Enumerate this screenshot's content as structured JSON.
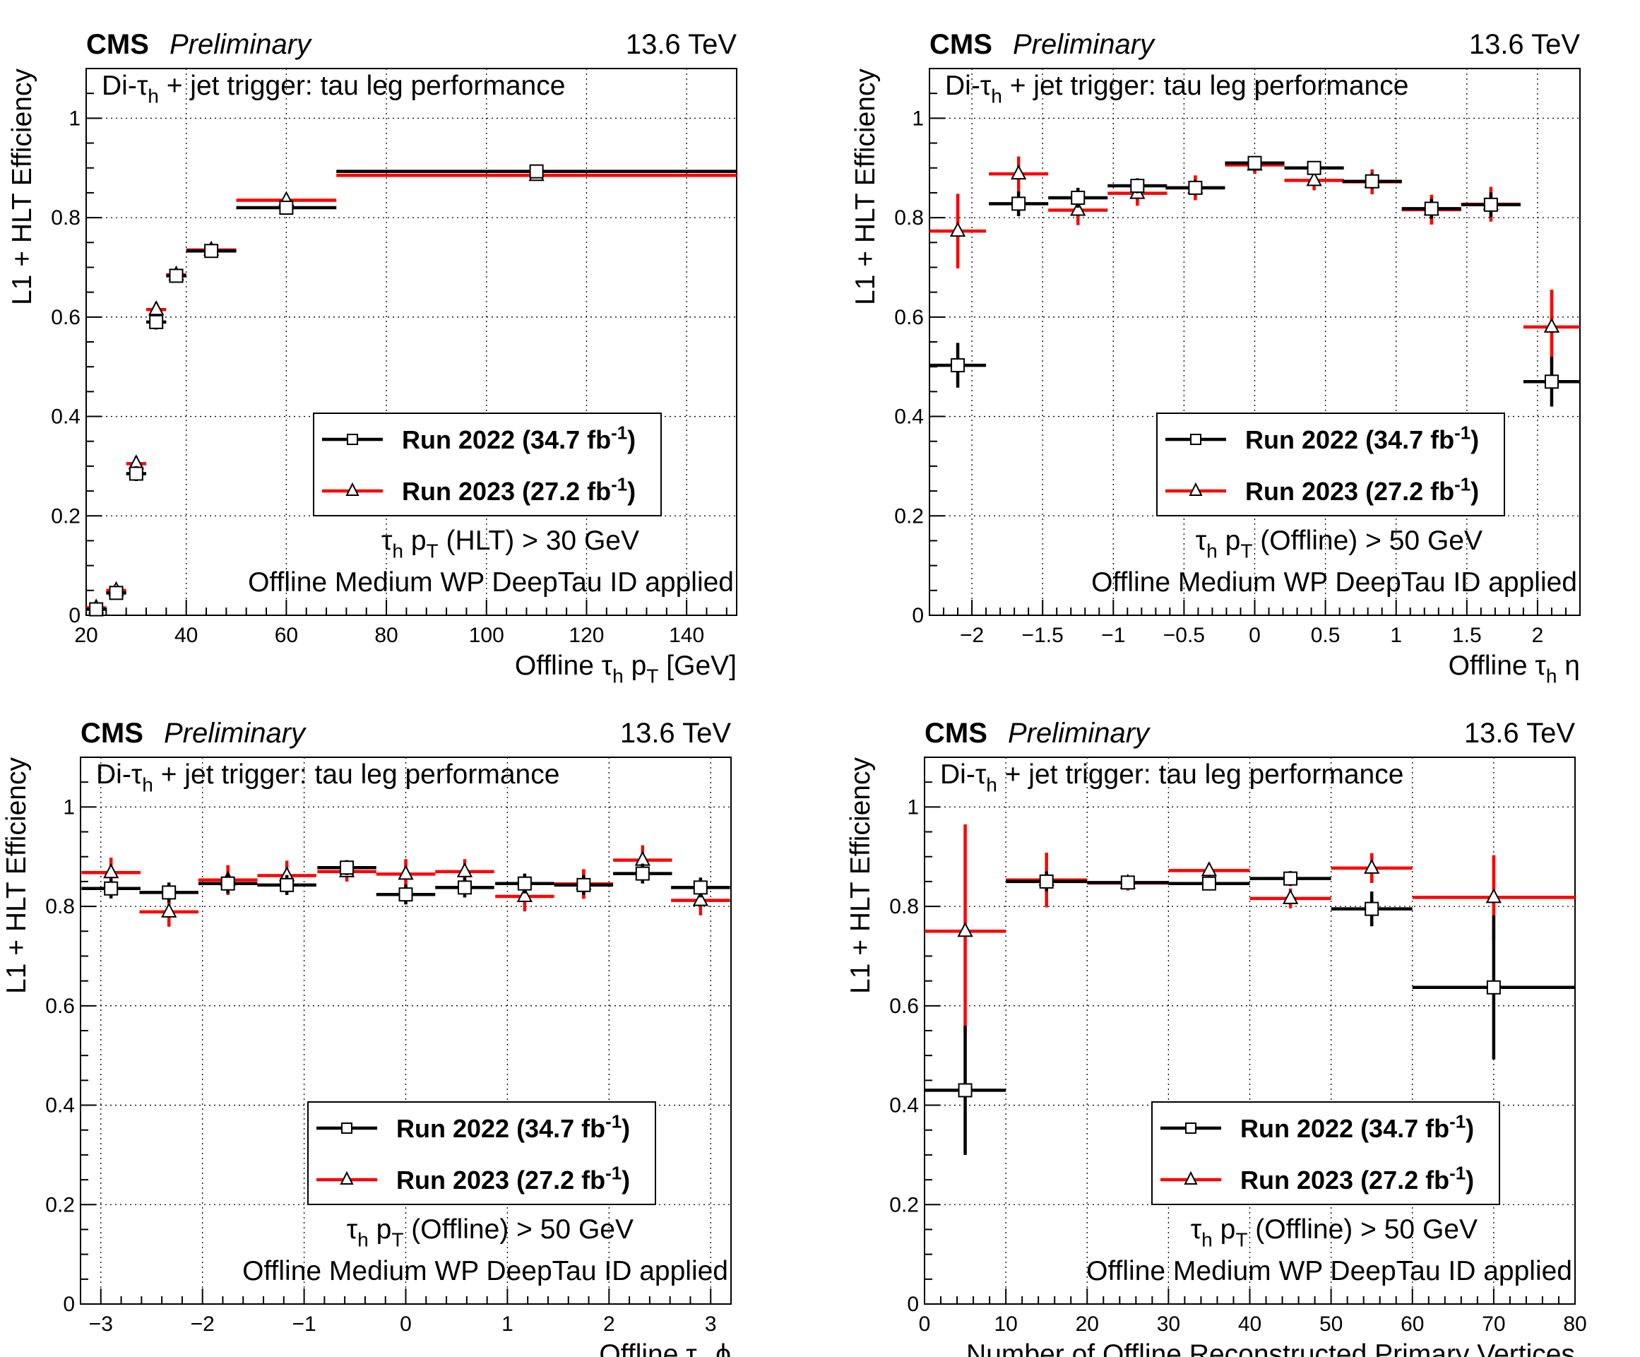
{
  "colors": {
    "run2022": "#000000",
    "run2023": "#ff0000"
  },
  "chart_data": [
    {
      "type": "scatter",
      "cms_label": "CMS",
      "preliminary": "Preliminary",
      "energy": "13.6 TeV",
      "title": "Di-τh + jet trigger: tau leg performance",
      "title_main": "Di-τ",
      "title_sub": "h",
      "title_rest": " + jet trigger: tau leg performance",
      "ylabel": "L1 + HLT Efficiency",
      "xlabel_main": "Offline τ",
      "xlabel_sub": "h",
      "xlabel_rest": " p",
      "xlabel_sub2": "T",
      "xlabel_tail": " [GeV]",
      "xlim": [
        20,
        150
      ],
      "ylim": [
        0,
        1.1
      ],
      "xticks": [
        20,
        40,
        60,
        80,
        100,
        120,
        140
      ],
      "xtick_labels": [
        "20",
        "40",
        "60",
        "80",
        "100",
        "120",
        "140"
      ],
      "yticks": [
        0,
        0.2,
        0.4,
        0.6,
        0.8,
        1
      ],
      "ytick_labels": [
        "0",
        "0.2",
        "0.4",
        "0.6",
        "0.8",
        "1"
      ],
      "cut_main": "τ",
      "cut_sub": "h",
      "cut_mid": " p",
      "cut_sub2": "T",
      "cut_rest": " (HLT) > 30 GeV",
      "id_text": "Offline Medium WP DeepTau ID applied",
      "legend": [
        "Run 2022 (34.7 fb",
        "Run 2023 (27.2 fb"
      ],
      "legend_sup": "-1",
      "legend_close": ")",
      "series": [
        {
          "name": "Run 2022 (34.7 fb-1)",
          "x": [
            22,
            26,
            30,
            34,
            38,
            45,
            60,
            110
          ],
          "xerr": [
            2,
            2,
            2,
            2,
            2,
            5,
            10,
            40
          ],
          "y": [
            0.012,
            0.045,
            0.285,
            0.59,
            0.683,
            0.733,
            0.82,
            0.893
          ],
          "yerr": [
            0.006,
            0.01,
            0.015,
            0.015,
            0.012,
            0.01,
            0.01,
            0.008
          ]
        },
        {
          "name": "Run 2023 (27.2 fb-1)",
          "x": [
            22,
            26,
            30,
            34,
            38,
            45,
            60,
            110
          ],
          "xerr": [
            2,
            2,
            2,
            2,
            2,
            5,
            10,
            40
          ],
          "y": [
            0.015,
            0.05,
            0.305,
            0.615,
            0.685,
            0.735,
            0.835,
            0.885
          ],
          "yerr": [
            0.006,
            0.01,
            0.015,
            0.015,
            0.012,
            0.01,
            0.01,
            0.008
          ]
        }
      ]
    },
    {
      "type": "scatter",
      "cms_label": "CMS",
      "preliminary": "Preliminary",
      "energy": "13.6 TeV",
      "title": "Di-τh + jet trigger: tau leg performance",
      "title_main": "Di-τ",
      "title_sub": "h",
      "title_rest": " + jet trigger: tau leg performance",
      "ylabel": "L1 + HLT Efficiency",
      "xlabel_main": "Offline τ",
      "xlabel_sub": "h",
      "xlabel_rest": " η",
      "xlabel_sub2": "",
      "xlabel_tail": "",
      "xlim": [
        -2.3,
        2.3
      ],
      "ylim": [
        0,
        1.1
      ],
      "xticks": [
        -2,
        -1.5,
        -1,
        -0.5,
        0,
        0.5,
        1,
        1.5,
        2
      ],
      "xtick_labels": [
        "−2",
        "−1.5",
        "−1",
        "−0.5",
        "0",
        "0.5",
        "1",
        "1.5",
        "2"
      ],
      "yticks": [
        0,
        0.2,
        0.4,
        0.6,
        0.8,
        1
      ],
      "ytick_labels": [
        "0",
        "0.2",
        "0.4",
        "0.6",
        "0.8",
        "1"
      ],
      "cut_main": "τ",
      "cut_sub": "h",
      "cut_mid": " p",
      "cut_sub2": "T",
      "cut_rest": " (Offline) > 50 GeV",
      "id_text": "Offline Medium WP DeepTau ID applied",
      "legend": [
        "Run 2022 (34.7 fb",
        "Run 2023 (27.2 fb"
      ],
      "legend_sup": "-1",
      "legend_close": ")",
      "series": [
        {
          "name": "Run 2022 (34.7 fb-1)",
          "x": [
            -2.1,
            -1.67,
            -1.25,
            -0.83,
            -0.42,
            0,
            0.42,
            0.83,
            1.25,
            1.67,
            2.1
          ],
          "xerr": [
            0.2,
            0.21,
            0.21,
            0.21,
            0.21,
            0.21,
            0.21,
            0.21,
            0.21,
            0.21,
            0.2
          ],
          "y": [
            0.503,
            0.828,
            0.84,
            0.864,
            0.86,
            0.91,
            0.9,
            0.873,
            0.818,
            0.826,
            0.47
          ],
          "yerr": [
            0.045,
            0.025,
            0.02,
            0.015,
            0.015,
            0.012,
            0.012,
            0.015,
            0.02,
            0.025,
            0.05
          ]
        },
        {
          "name": "Run 2023 (27.2 fb-1)",
          "x": [
            -2.1,
            -1.67,
            -1.25,
            -0.83,
            -0.42,
            0,
            0.42,
            0.83,
            1.25,
            1.67,
            2.1
          ],
          "xerr": [
            0.2,
            0.21,
            0.21,
            0.21,
            0.21,
            0.21,
            0.21,
            0.21,
            0.21,
            0.21,
            0.2
          ],
          "y": [
            0.773,
            0.888,
            0.815,
            0.849,
            0.86,
            0.906,
            0.875,
            0.872,
            0.816,
            0.827,
            0.58
          ],
          "yerr": [
            0.075,
            0.035,
            0.03,
            0.025,
            0.025,
            0.018,
            0.02,
            0.025,
            0.03,
            0.035,
            0.075
          ]
        }
      ]
    },
    {
      "type": "scatter",
      "cms_label": "CMS",
      "preliminary": "Preliminary",
      "energy": "13.6 TeV",
      "title": "Di-τh + jet trigger: tau leg performance",
      "title_main": "Di-τ",
      "title_sub": "h",
      "title_rest": " + jet trigger: tau leg performance",
      "ylabel": "L1 + HLT Efficiency",
      "xlabel_main": "Offline τ",
      "xlabel_sub": "h",
      "xlabel_rest": " ϕ",
      "xlabel_sub2": "",
      "xlabel_tail": "",
      "xlim": [
        -3.2,
        3.2
      ],
      "ylim": [
        0,
        1.1
      ],
      "xticks": [
        -3,
        -2,
        -1,
        0,
        1,
        2,
        3
      ],
      "xtick_labels": [
        "−3",
        "−2",
        "−1",
        "0",
        "1",
        "2",
        "3"
      ],
      "yticks": [
        0,
        0.2,
        0.4,
        0.6,
        0.8,
        1
      ],
      "ytick_labels": [
        "0",
        "0.2",
        "0.4",
        "0.6",
        "0.8",
        "1"
      ],
      "cut_main": "τ",
      "cut_sub": "h",
      "cut_mid": " p",
      "cut_sub2": "T",
      "cut_rest": " (Offline) > 50 GeV",
      "id_text": "Offline Medium WP DeepTau ID applied",
      "legend": [
        "Run 2022 (34.7 fb",
        "Run 2023 (27.2 fb"
      ],
      "legend_sup": "-1",
      "legend_close": ")",
      "series": [
        {
          "name": "Run 2022 (34.7 fb-1)",
          "x": [
            -2.9,
            -2.33,
            -1.75,
            -1.17,
            -0.58,
            0,
            0.58,
            1.17,
            1.75,
            2.33,
            2.9
          ],
          "xerr": [
            0.29,
            0.29,
            0.29,
            0.29,
            0.29,
            0.29,
            0.29,
            0.29,
            0.29,
            0.29,
            0.29
          ],
          "y": [
            0.836,
            0.828,
            0.846,
            0.843,
            0.878,
            0.824,
            0.838,
            0.846,
            0.843,
            0.866,
            0.838
          ],
          "yerr": [
            0.02,
            0.02,
            0.02,
            0.02,
            0.015,
            0.02,
            0.02,
            0.02,
            0.02,
            0.02,
            0.02
          ]
        },
        {
          "name": "Run 2023 (27.2 fb-1)",
          "x": [
            -2.9,
            -2.33,
            -1.75,
            -1.17,
            -0.58,
            0,
            0.58,
            1.17,
            1.75,
            2.33,
            2.9
          ],
          "xerr": [
            0.29,
            0.29,
            0.29,
            0.29,
            0.29,
            0.29,
            0.29,
            0.29,
            0.29,
            0.29,
            0.29
          ],
          "y": [
            0.868,
            0.789,
            0.853,
            0.862,
            0.87,
            0.865,
            0.87,
            0.82,
            0.845,
            0.893,
            0.812
          ],
          "yerr": [
            0.03,
            0.03,
            0.03,
            0.03,
            0.02,
            0.03,
            0.025,
            0.03,
            0.03,
            0.03,
            0.03
          ]
        }
      ]
    },
    {
      "type": "scatter",
      "cms_label": "CMS",
      "preliminary": "Preliminary",
      "energy": "13.6 TeV",
      "title": "Di-τh + jet trigger: tau leg performance",
      "title_main": "Di-τ",
      "title_sub": "h",
      "title_rest": " + jet trigger: tau leg performance",
      "ylabel": "L1 + HLT Efficiency",
      "xlabel_main": "Number of Offline Reconstructed Primary Vertices",
      "xlabel_sub": "",
      "xlabel_rest": "",
      "xlabel_sub2": "",
      "xlabel_tail": "",
      "xlim": [
        0,
        80
      ],
      "ylim": [
        0,
        1.1
      ],
      "xticks": [
        0,
        10,
        20,
        30,
        40,
        50,
        60,
        70,
        80
      ],
      "xtick_labels": [
        "0",
        "10",
        "20",
        "30",
        "40",
        "50",
        "60",
        "70",
        "80"
      ],
      "yticks": [
        0,
        0.2,
        0.4,
        0.6,
        0.8,
        1
      ],
      "ytick_labels": [
        "0",
        "0.2",
        "0.4",
        "0.6",
        "0.8",
        "1"
      ],
      "cut_main": "τ",
      "cut_sub": "h",
      "cut_mid": " p",
      "cut_sub2": "T",
      "cut_rest": " (Offline) > 50 GeV",
      "id_text": "Offline Medium WP DeepTau ID applied",
      "legend": [
        "Run 2022 (34.7 fb",
        "Run 2023 (27.2 fb"
      ],
      "legend_sup": "-1",
      "legend_close": ")",
      "series": [
        {
          "name": "Run 2022 (34.7 fb-1)",
          "x": [
            5,
            15,
            25,
            35,
            45,
            55,
            70
          ],
          "xerr": [
            5,
            5,
            5,
            5,
            5,
            5,
            10
          ],
          "y": [
            0.43,
            0.85,
            0.848,
            0.846,
            0.856,
            0.795,
            0.637
          ],
          "yerr": [
            0.13,
            0.02,
            0.01,
            0.01,
            0.015,
            0.035,
            0.145
          ]
        },
        {
          "name": "Run 2023 (27.2 fb-1)",
          "x": [
            5,
            15,
            25,
            35,
            45,
            55,
            70
          ],
          "xerr": [
            5,
            5,
            5,
            5,
            5,
            5,
            10
          ],
          "y": [
            0.75,
            0.853,
            0.847,
            0.872,
            0.816,
            0.877,
            0.818
          ],
          "yerr": [
            0.215,
            0.055,
            0.015,
            0.015,
            0.02,
            0.03,
            0.085
          ]
        }
      ]
    }
  ]
}
